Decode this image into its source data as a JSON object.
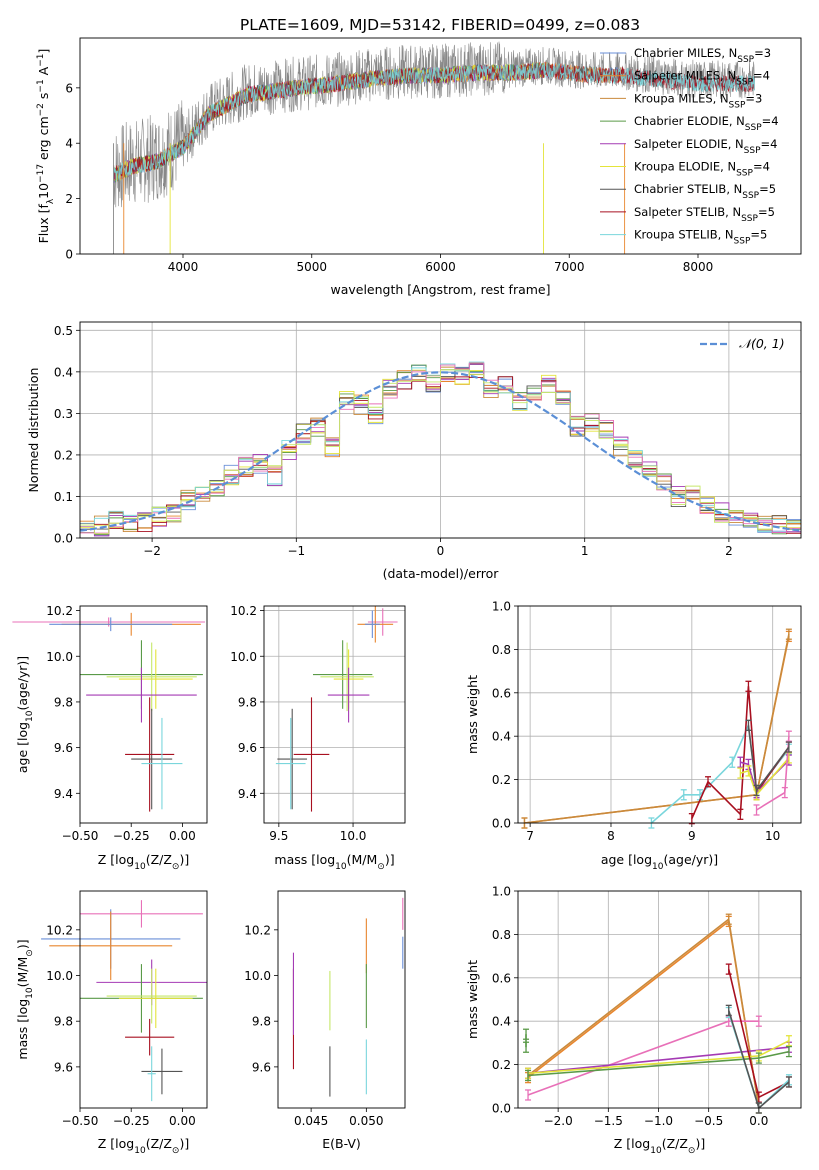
{
  "figure_title": "PLATE=1609, MJD=53142, FIBERID=0499, z=0.083",
  "colors": {
    "Chabrier MILES": "#6a8fd8",
    "Salpeter MILES": "#e8862e",
    "Kroupa MILES": "#c98a3c",
    "Chabrier ELODIE": "#5a9a48",
    "Salpeter ELODIE": "#a43ab4",
    "Kroupa ELODIE": "#e4e43a",
    "Chabrier STELIB": "#555555",
    "Salpeter STELIB": "#a81020",
    "Kroupa STELIB": "#7ad6dc",
    "Pink extra": "#e870b8",
    "Lime extra": "#c6e86a",
    "Data": "#888888",
    "Gaussian": "#5b8fd6"
  },
  "chart_data": [
    {
      "id": "spectrum",
      "type": "line",
      "xlabel": "wavelength [Angstrom, rest frame]",
      "ylabel": "Flux [f",
      "ylabel_sub": "λ",
      "ylabel_rest": "10",
      "ylabel_exp": "−17",
      "ylabel_units": " erg cm",
      "ylabel_exp2": "−2",
      "ylabel_s": " s",
      "ylabel_exp3": "−1",
      "ylabel_end": " A",
      "ylabel_exp4": "−1",
      "ylabel_close": "]",
      "xlim": [
        3200,
        8800
      ],
      "ylim": [
        0,
        7.8
      ],
      "xticks": [
        "4000",
        "5000",
        "6000",
        "7000",
        "8000"
      ],
      "yticks": [
        "0",
        "2",
        "4",
        "6"
      ],
      "spectrum_knots": {
        "x": [
          3460,
          3600,
          3800,
          4000,
          4200,
          4500,
          4800,
          5000,
          5200,
          5500,
          5800,
          6000,
          6300,
          6600,
          6800,
          7000,
          7200,
          7400,
          7600,
          7800,
          8000,
          8200,
          8400
        ],
        "y": [
          3.0,
          3.3,
          3.5,
          4.0,
          5.2,
          5.9,
          6.1,
          6.2,
          6.3,
          6.5,
          6.6,
          6.6,
          6.7,
          6.7,
          6.8,
          6.7,
          6.6,
          6.6,
          6.5,
          6.4,
          6.3,
          6.3,
          6.3
        ]
      },
      "legend": [
        {
          "label": "Chabrier MILES, N",
          "sub": "SSP",
          "n": "=3"
        },
        {
          "label": "Salpeter MILES, N",
          "sub": "SSP",
          "n": "=4"
        },
        {
          "label": "Kroupa MILES, N",
          "sub": "SSP",
          "n": "=3"
        },
        {
          "label": "Chabrier ELODIE, N",
          "sub": "SSP",
          "n": "=4"
        },
        {
          "label": "Salpeter ELODIE, N",
          "sub": "SSP",
          "n": "=4"
        },
        {
          "label": "Kroupa ELODIE, N",
          "sub": "SSP",
          "n": "=4"
        },
        {
          "label": "Chabrier STELIB, N",
          "sub": "SSP",
          "n": "=5"
        },
        {
          "label": "Salpeter STELIB, N",
          "sub": "SSP",
          "n": "=5"
        },
        {
          "label": "Kroupa STELIB, N",
          "sub": "SSP",
          "n": "=5"
        }
      ]
    },
    {
      "id": "residuals",
      "type": "line",
      "xlabel": "(data-model)/error",
      "ylabel": "Normed distribution",
      "xlim": [
        -2.5,
        2.5
      ],
      "ylim": [
        0,
        0.52
      ],
      "xticks": [
        "−2",
        "−1",
        "0",
        "1",
        "2"
      ],
      "yticks": [
        "0.0",
        "0.1",
        "0.2",
        "0.3",
        "0.4",
        "0.5"
      ],
      "legend_label": "𝒩(0, 1)",
      "bins": [
        -2.5,
        -2.4,
        -2.3,
        -2.2,
        -2.1,
        -2.0,
        -1.9,
        -1.8,
        -1.7,
        -1.6,
        -1.5,
        -1.4,
        -1.3,
        -1.2,
        -1.1,
        -1.0,
        -0.9,
        -0.8,
        -0.7,
        -0.6,
        -0.5,
        -0.4,
        -0.3,
        -0.2,
        -0.1,
        0.0,
        0.1,
        0.2,
        0.3,
        0.4,
        0.5,
        0.6,
        0.7,
        0.8,
        0.9,
        1.0,
        1.1,
        1.2,
        1.3,
        1.4,
        1.5,
        1.6,
        1.7,
        1.8,
        1.9,
        2.0,
        2.1,
        2.2,
        2.3,
        2.4,
        2.5
      ],
      "base_hist": [
        0.03,
        0.03,
        0.04,
        0.03,
        0.04,
        0.05,
        0.06,
        0.09,
        0.1,
        0.12,
        0.15,
        0.17,
        0.18,
        0.15,
        0.21,
        0.25,
        0.27,
        0.22,
        0.33,
        0.32,
        0.3,
        0.36,
        0.38,
        0.4,
        0.37,
        0.4,
        0.39,
        0.4,
        0.36,
        0.37,
        0.33,
        0.35,
        0.37,
        0.34,
        0.27,
        0.28,
        0.26,
        0.22,
        0.19,
        0.17,
        0.14,
        0.1,
        0.1,
        0.08,
        0.06,
        0.05,
        0.04,
        0.03,
        0.03,
        0.03
      ]
    },
    {
      "id": "age_vs_Z",
      "type": "scatter",
      "xlabel": "Z [log",
      "xlabel_sub": "10",
      "xlabel_rest": "(Z/Z",
      "xlabel_sub2": "⊙",
      "xlabel_close": ")]",
      "ylabel": "age  [log",
      "ylabel_sub": "10",
      "ylabel_rest": "(age/yr)]",
      "xlim": [
        -0.5,
        0.12
      ],
      "ylim": [
        9.27,
        10.22
      ],
      "xticks": [
        "−0.50",
        "−0.25",
        "0.00"
      ],
      "yticks": [
        "9.4",
        "9.6",
        "9.8",
        "10.0",
        "10.2"
      ],
      "points": [
        {
          "x": -0.36,
          "y": 10.15,
          "xerr": 0.47,
          "yerr": 0.02,
          "c": "Pink extra"
        },
        {
          "x": -0.25,
          "y": 10.14,
          "xerr": 0.34,
          "yerr": 0.05,
          "c": "Salpeter MILES"
        },
        {
          "x": -0.35,
          "y": 10.14,
          "xerr": 0.3,
          "yerr": 0.03,
          "c": "Chabrier MILES"
        },
        {
          "x": -0.2,
          "y": 9.92,
          "xerr": 0.3,
          "yerr": 0.15,
          "c": "Chabrier ELODIE"
        },
        {
          "x": -0.15,
          "y": 9.91,
          "xerr": 0.22,
          "yerr": 0.15,
          "c": "Lime extra"
        },
        {
          "x": -0.13,
          "y": 9.9,
          "xerr": 0.18,
          "yerr": 0.13,
          "c": "Kroupa ELODIE"
        },
        {
          "x": -0.2,
          "y": 9.83,
          "xerr": 0.27,
          "yerr": 0.12,
          "c": "Salpeter ELODIE"
        },
        {
          "x": -0.15,
          "y": 9.55,
          "xerr": 0.1,
          "yerr": 0.22,
          "c": "Chabrier STELIB"
        },
        {
          "x": -0.16,
          "y": 9.57,
          "xerr": 0.12,
          "yerr": 0.25,
          "c": "Salpeter STELIB"
        },
        {
          "x": -0.1,
          "y": 9.53,
          "xerr": 0.1,
          "yerr": 0.2,
          "c": "Kroupa STELIB"
        }
      ]
    },
    {
      "id": "age_vs_mass",
      "type": "scatter",
      "xlabel": "mass [log",
      "xlabel_sub": "10",
      "xlabel_rest": "(M/M",
      "xlabel_sub2": "⊙",
      "xlabel_close": ")]",
      "xlim": [
        9.4,
        10.35
      ],
      "ylim": [
        9.27,
        10.22
      ],
      "xticks": [
        "9.5",
        "10.0"
      ],
      "yticks": [
        "9.4",
        "9.6",
        "9.8",
        "10.0",
        "10.2"
      ],
      "points": [
        {
          "x": 10.2,
          "y": 10.15,
          "xerr": 0.1,
          "yerr": 0.06,
          "c": "Pink extra"
        },
        {
          "x": 10.15,
          "y": 10.14,
          "xerr": 0.12,
          "yerr": 0.08,
          "c": "Salpeter MILES"
        },
        {
          "x": 10.13,
          "y": 10.14,
          "xerr": 0.05,
          "yerr": 0.06,
          "c": "Chabrier MILES"
        },
        {
          "x": 9.93,
          "y": 9.92,
          "xerr": 0.2,
          "yerr": 0.15,
          "c": "Chabrier ELODIE"
        },
        {
          "x": 9.96,
          "y": 9.91,
          "xerr": 0.18,
          "yerr": 0.15,
          "c": "Lime extra"
        },
        {
          "x": 9.97,
          "y": 9.9,
          "xerr": 0.1,
          "yerr": 0.13,
          "c": "Kroupa ELODIE"
        },
        {
          "x": 9.97,
          "y": 9.83,
          "xerr": 0.14,
          "yerr": 0.12,
          "c": "Salpeter ELODIE"
        },
        {
          "x": 9.59,
          "y": 9.55,
          "xerr": 0.1,
          "yerr": 0.22,
          "c": "Chabrier STELIB"
        },
        {
          "x": 9.72,
          "y": 9.57,
          "xerr": 0.12,
          "yerr": 0.25,
          "c": "Salpeter STELIB"
        },
        {
          "x": 9.58,
          "y": 9.53,
          "xerr": 0.1,
          "yerr": 0.2,
          "c": "Kroupa STELIB"
        }
      ]
    },
    {
      "id": "mass_weight_vs_age",
      "type": "line",
      "xlabel": "age  [log",
      "xlabel_sub": "10",
      "xlabel_rest": "(age/yr)]",
      "ylabel": "mass weight",
      "xlim": [
        6.85,
        10.35
      ],
      "ylim": [
        0,
        1.0
      ],
      "xticks": [
        "7",
        "8",
        "9",
        "10"
      ],
      "yticks": [
        "0.0",
        "0.2",
        "0.4",
        "0.6",
        "0.8",
        "1.0"
      ],
      "series": [
        {
          "c": "Salpeter MILES",
          "x": [
            6.93,
            9.8,
            10.2
          ],
          "y": [
            0.0,
            0.13,
            0.86
          ]
        },
        {
          "c": "Kroupa MILES",
          "x": [
            6.93,
            9.8,
            10.2
          ],
          "y": [
            0.0,
            0.13,
            0.87
          ]
        },
        {
          "c": "Kroupa STELIB",
          "x": [
            8.5,
            8.9,
            9.1,
            9.5,
            9.7,
            9.8,
            10.2
          ],
          "y": [
            0.0,
            0.13,
            0.13,
            0.28,
            0.45,
            0.15,
            0.34
          ]
        },
        {
          "c": "Salpeter STELIB",
          "x": [
            9.0,
            9.2,
            9.6,
            9.7,
            9.8,
            10.2
          ],
          "y": [
            0.02,
            0.19,
            0.04,
            0.63,
            0.14,
            0.35
          ]
        },
        {
          "c": "Salpeter ELODIE",
          "x": [
            9.6,
            9.7,
            9.8,
            10.2
          ],
          "y": [
            0.28,
            0.27,
            0.14,
            0.29
          ]
        },
        {
          "c": "Kroupa ELODIE",
          "x": [
            9.6,
            9.7,
            9.8,
            10.2
          ],
          "y": [
            0.23,
            0.24,
            0.13,
            0.3
          ]
        },
        {
          "c": "Pink extra",
          "x": [
            9.8,
            10.15,
            10.2
          ],
          "y": [
            0.06,
            0.14,
            0.4
          ]
        },
        {
          "c": "Chabrier STELIB",
          "x": [
            9.7,
            9.8,
            10.2
          ],
          "y": [
            0.45,
            0.15,
            0.35
          ]
        }
      ]
    },
    {
      "id": "mass_vs_Z",
      "type": "scatter",
      "xlabel": "Z [log",
      "xlabel_sub": "10",
      "xlabel_rest": "(Z/Z",
      "xlabel_sub2": "⊙",
      "xlabel_close": ")]",
      "ylabel": "mass [log",
      "ylabel_sub": "10",
      "ylabel_rest": "(M/M",
      "ylabel_sub2": "⊙",
      "ylabel_close": ")]",
      "xlim": [
        -0.5,
        0.12
      ],
      "ylim": [
        9.42,
        10.37
      ],
      "xticks": [
        "−0.50",
        "−0.25",
        "0.00"
      ],
      "yticks": [
        "9.6",
        "9.8",
        "10.0",
        "10.2"
      ],
      "points": [
        {
          "x": -0.2,
          "y": 10.27,
          "xerr": 0.3,
          "yerr": 0.06,
          "c": "Pink extra"
        },
        {
          "x": -0.35,
          "y": 10.16,
          "xerr": 0.34,
          "yerr": 0.13,
          "c": "Chabrier MILES"
        },
        {
          "x": -0.35,
          "y": 10.13,
          "xerr": 0.3,
          "yerr": 0.15,
          "c": "Salpeter MILES"
        },
        {
          "x": -0.15,
          "y": 9.97,
          "xerr": 0.27,
          "yerr": 0.1,
          "c": "Salpeter ELODIE"
        },
        {
          "x": -0.2,
          "y": 9.9,
          "xerr": 0.3,
          "yerr": 0.15,
          "c": "Chabrier ELODIE"
        },
        {
          "x": -0.15,
          "y": 9.91,
          "xerr": 0.22,
          "yerr": 0.12,
          "c": "Lime extra"
        },
        {
          "x": -0.13,
          "y": 9.9,
          "xerr": 0.18,
          "yerr": 0.13,
          "c": "Kroupa ELODIE"
        },
        {
          "x": -0.16,
          "y": 9.73,
          "xerr": 0.12,
          "yerr": 0.08,
          "c": "Salpeter STELIB"
        },
        {
          "x": -0.1,
          "y": 9.58,
          "xerr": 0.1,
          "yerr": 0.1,
          "c": "Chabrier STELIB"
        },
        {
          "x": -0.15,
          "y": 9.57,
          "xerr": 0.02,
          "yerr": 0.12,
          "c": "Kroupa STELIB"
        }
      ]
    },
    {
      "id": "mass_vs_EBV",
      "type": "scatter",
      "xlabel": "E(B-V)",
      "xlim": [
        0.042,
        0.0535
      ],
      "ylim": [
        9.42,
        10.37
      ],
      "xticks": [
        "0.045",
        "0.050"
      ],
      "yticks": [
        "9.6",
        "9.8",
        "10.0",
        "10.2"
      ],
      "points": [
        {
          "x": 0.0434,
          "y": 9.81,
          "xerr": 0.0,
          "yerr": 0.22,
          "c": "Salpeter STELIB"
        },
        {
          "x": 0.0434,
          "y": 9.92,
          "xerr": 0.0,
          "yerr": 0.18,
          "c": "Salpeter ELODIE"
        },
        {
          "x": 0.0467,
          "y": 9.58,
          "xerr": 0.0,
          "yerr": 0.11,
          "c": "Chabrier STELIB"
        },
        {
          "x": 0.0467,
          "y": 9.89,
          "xerr": 0.0,
          "yerr": 0.13,
          "c": "Lime extra"
        },
        {
          "x": 0.05,
          "y": 10.13,
          "xerr": 0.0,
          "yerr": 0.12,
          "c": "Salpeter MILES"
        },
        {
          "x": 0.05,
          "y": 9.91,
          "xerr": 0.0,
          "yerr": 0.14,
          "c": "Chabrier ELODIE"
        },
        {
          "x": 0.05,
          "y": 9.6,
          "xerr": 0.0,
          "yerr": 0.12,
          "c": "Kroupa STELIB"
        },
        {
          "x": 0.0533,
          "y": 10.27,
          "xerr": 0.0,
          "yerr": 0.07,
          "c": "Pink extra"
        },
        {
          "x": 0.0533,
          "y": 10.1,
          "xerr": 0.0,
          "yerr": 0.07,
          "c": "Chabrier MILES"
        }
      ]
    },
    {
      "id": "mass_weight_vs_Z",
      "type": "line",
      "xlabel": "Z [log",
      "xlabel_sub": "10",
      "xlabel_rest": "(Z/Z",
      "xlabel_sub2": "⊙",
      "xlabel_close": ")]",
      "ylabel": "mass weight",
      "xlim": [
        -2.4,
        0.42
      ],
      "ylim": [
        0,
        1.0
      ],
      "xticks": [
        "−2.0",
        "−1.5",
        "−1.0",
        "−0.5",
        "0.0"
      ],
      "yticks": [
        "0.0",
        "0.2",
        "0.4",
        "0.6",
        "0.8",
        "1.0"
      ],
      "series": [
        {
          "c": "Salpeter MILES",
          "x": [
            -2.3,
            -0.3,
            0.0
          ],
          "y": [
            0.14,
            0.86,
            0.0
          ]
        },
        {
          "c": "Kroupa MILES",
          "x": [
            -2.3,
            -0.3,
            0.0
          ],
          "y": [
            0.15,
            0.87,
            0.0
          ]
        },
        {
          "c": "Pink extra",
          "x": [
            -2.3,
            -0.3,
            0.0
          ],
          "y": [
            0.06,
            0.4,
            0.4
          ]
        },
        {
          "c": "Salpeter ELODIE",
          "x": [
            -2.3,
            0.3
          ],
          "y": [
            0.16,
            0.28
          ]
        },
        {
          "c": "Kroupa ELODIE",
          "x": [
            -2.3,
            0.0,
            0.3
          ],
          "y": [
            0.16,
            0.24,
            0.31
          ]
        },
        {
          "c": "Chabrier ELODIE",
          "x": [
            -2.3,
            0.0,
            0.3
          ],
          "y": [
            0.15,
            0.23,
            0.26
          ]
        },
        {
          "c": "Salpeter STELIB",
          "x": [
            -0.3,
            0.0,
            0.3
          ],
          "y": [
            0.64,
            0.05,
            0.12
          ]
        },
        {
          "c": "Kroupa STELIB",
          "x": [
            -0.3,
            0.0,
            0.3
          ],
          "y": [
            0.44,
            0.0,
            0.13
          ]
        },
        {
          "c": "Chabrier STELIB",
          "x": [
            -0.3,
            0.0,
            0.3
          ],
          "y": [
            0.45,
            0.0,
            0.12
          ]
        },
        {
          "c": "Chabrier ELODIE",
          "x": [
            -2.32,
            -2.32
          ],
          "y": [
            0.34,
            0.28
          ]
        }
      ]
    }
  ]
}
